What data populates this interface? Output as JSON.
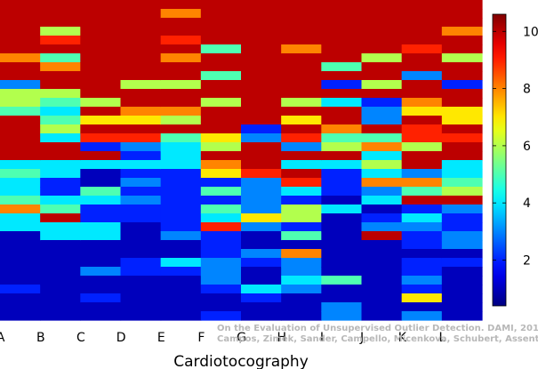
{
  "chart_data": {
    "type": "heatmap",
    "title": "",
    "xlabel": "Cardiotocography",
    "ylabel": "",
    "categories": [
      "A",
      "B",
      "C",
      "D",
      "E",
      "F",
      "G",
      "H",
      "I",
      "J",
      "K",
      "L"
    ],
    "colorbar": {
      "min": 0.4,
      "max": 10.6,
      "ticks": [
        2,
        4,
        6,
        8,
        10
      ],
      "colormap": "jet"
    },
    "grid": false,
    "watermark": [
      "On the Evaluation of Unsupervised Outlier Detection. DAMI, 2015.",
      "Campos, Zimek, Sander, Campello, Micenkova, Schubert, Assent, Houle"
    ],
    "columns": [
      {
        "name": "A",
        "values": [
          10,
          10,
          10,
          10,
          10,
          10,
          8,
          10,
          10,
          3,
          6,
          6,
          5,
          10,
          10,
          10,
          10,
          10,
          4,
          5,
          4,
          4,
          5,
          8,
          4,
          4,
          1,
          1,
          1,
          1,
          1,
          1,
          2,
          1,
          1,
          1
        ]
      },
      {
        "name": "B",
        "values": [
          10,
          10,
          10,
          6,
          9,
          10,
          5,
          8,
          10,
          10,
          6,
          5,
          4,
          5,
          6,
          4,
          10,
          10,
          4,
          4,
          2,
          2,
          4,
          5,
          10,
          4,
          4,
          1,
          1,
          1,
          1,
          1,
          1,
          1,
          1,
          1
        ]
      },
      {
        "name": "C",
        "values": [
          10,
          10,
          10,
          10,
          10,
          10,
          10,
          10,
          10,
          10,
          10,
          6,
          10,
          7,
          10,
          9,
          2,
          10,
          4,
          1,
          1,
          5,
          4,
          2,
          2,
          4,
          4,
          1,
          1,
          1,
          3,
          1,
          1,
          2,
          1,
          1
        ]
      },
      {
        "name": "D",
        "values": [
          10,
          10,
          10,
          10,
          10,
          10,
          10,
          10,
          10,
          6,
          10,
          10,
          8,
          7,
          10,
          9,
          3,
          2,
          4,
          2,
          3,
          2,
          3,
          2,
          2,
          1,
          1,
          1,
          1,
          2,
          2,
          1,
          1,
          1,
          1,
          1
        ]
      },
      {
        "name": "E",
        "values": [
          10,
          8,
          10,
          10,
          9,
          10,
          8,
          10,
          10,
          6,
          10,
          10,
          8,
          6,
          10,
          5,
          4,
          4,
          4,
          2,
          2,
          2,
          2,
          2,
          2,
          2,
          3,
          1,
          1,
          4,
          2,
          1,
          1,
          1,
          1,
          1
        ]
      },
      {
        "name": "F",
        "values": [
          10,
          10,
          10,
          10,
          10,
          5,
          10,
          10,
          5,
          10,
          10,
          6,
          10,
          10,
          10,
          7,
          6,
          10,
          8,
          7,
          2,
          5,
          2,
          5,
          4,
          9,
          2,
          2,
          2,
          3,
          3,
          3,
          2,
          1,
          1,
          2
        ]
      },
      {
        "name": "G",
        "values": [
          10,
          10,
          10,
          10,
          10,
          10,
          10,
          10,
          10,
          10,
          10,
          10,
          10,
          10,
          2,
          3,
          10,
          10,
          10,
          9,
          3,
          3,
          3,
          3,
          7,
          3,
          1,
          1,
          3,
          2,
          1,
          1,
          4,
          2,
          1,
          1
        ]
      },
      {
        "name": "H",
        "values": [
          10,
          10,
          10,
          10,
          10,
          8,
          10,
          10,
          10,
          10,
          10,
          6,
          10,
          7,
          10,
          9,
          3,
          10,
          4,
          10,
          9,
          4,
          2,
          6,
          6,
          2,
          5,
          1,
          8,
          3,
          3,
          4,
          3,
          1,
          1,
          1
        ]
      },
      {
        "name": "I",
        "values": [
          10,
          10,
          10,
          10,
          10,
          10,
          10,
          5,
          10,
          2,
          10,
          4,
          10,
          10,
          8,
          5,
          6,
          10,
          4,
          2,
          2,
          2,
          1,
          4,
          1,
          1,
          1,
          1,
          1,
          1,
          1,
          5,
          1,
          1,
          3,
          3
        ]
      },
      {
        "name": "J",
        "values": [
          10,
          10,
          10,
          10,
          10,
          10,
          6,
          10,
          10,
          6,
          10,
          2,
          3,
          3,
          10,
          5,
          8,
          4,
          6,
          4,
          8,
          3,
          4,
          1,
          2,
          3,
          10,
          1,
          1,
          1,
          1,
          1,
          1,
          1,
          1,
          1
        ]
      },
      {
        "name": "K",
        "values": [
          10,
          10,
          10,
          10,
          10,
          9,
          10,
          10,
          3,
          10,
          10,
          8,
          7,
          10,
          9,
          9,
          6,
          10,
          10,
          3,
          8,
          5,
          10,
          2,
          4,
          3,
          2,
          2,
          1,
          2,
          2,
          3,
          2,
          7,
          1,
          3
        ]
      },
      {
        "name": "L",
        "values": [
          10,
          10,
          10,
          8,
          10,
          10,
          6,
          10,
          10,
          2,
          10,
          10,
          7,
          7,
          10,
          9,
          10,
          10,
          4,
          4,
          5,
          6,
          10,
          3,
          2,
          2,
          3,
          3,
          1,
          2,
          1,
          1,
          1,
          1,
          1,
          1
        ]
      }
    ]
  }
}
